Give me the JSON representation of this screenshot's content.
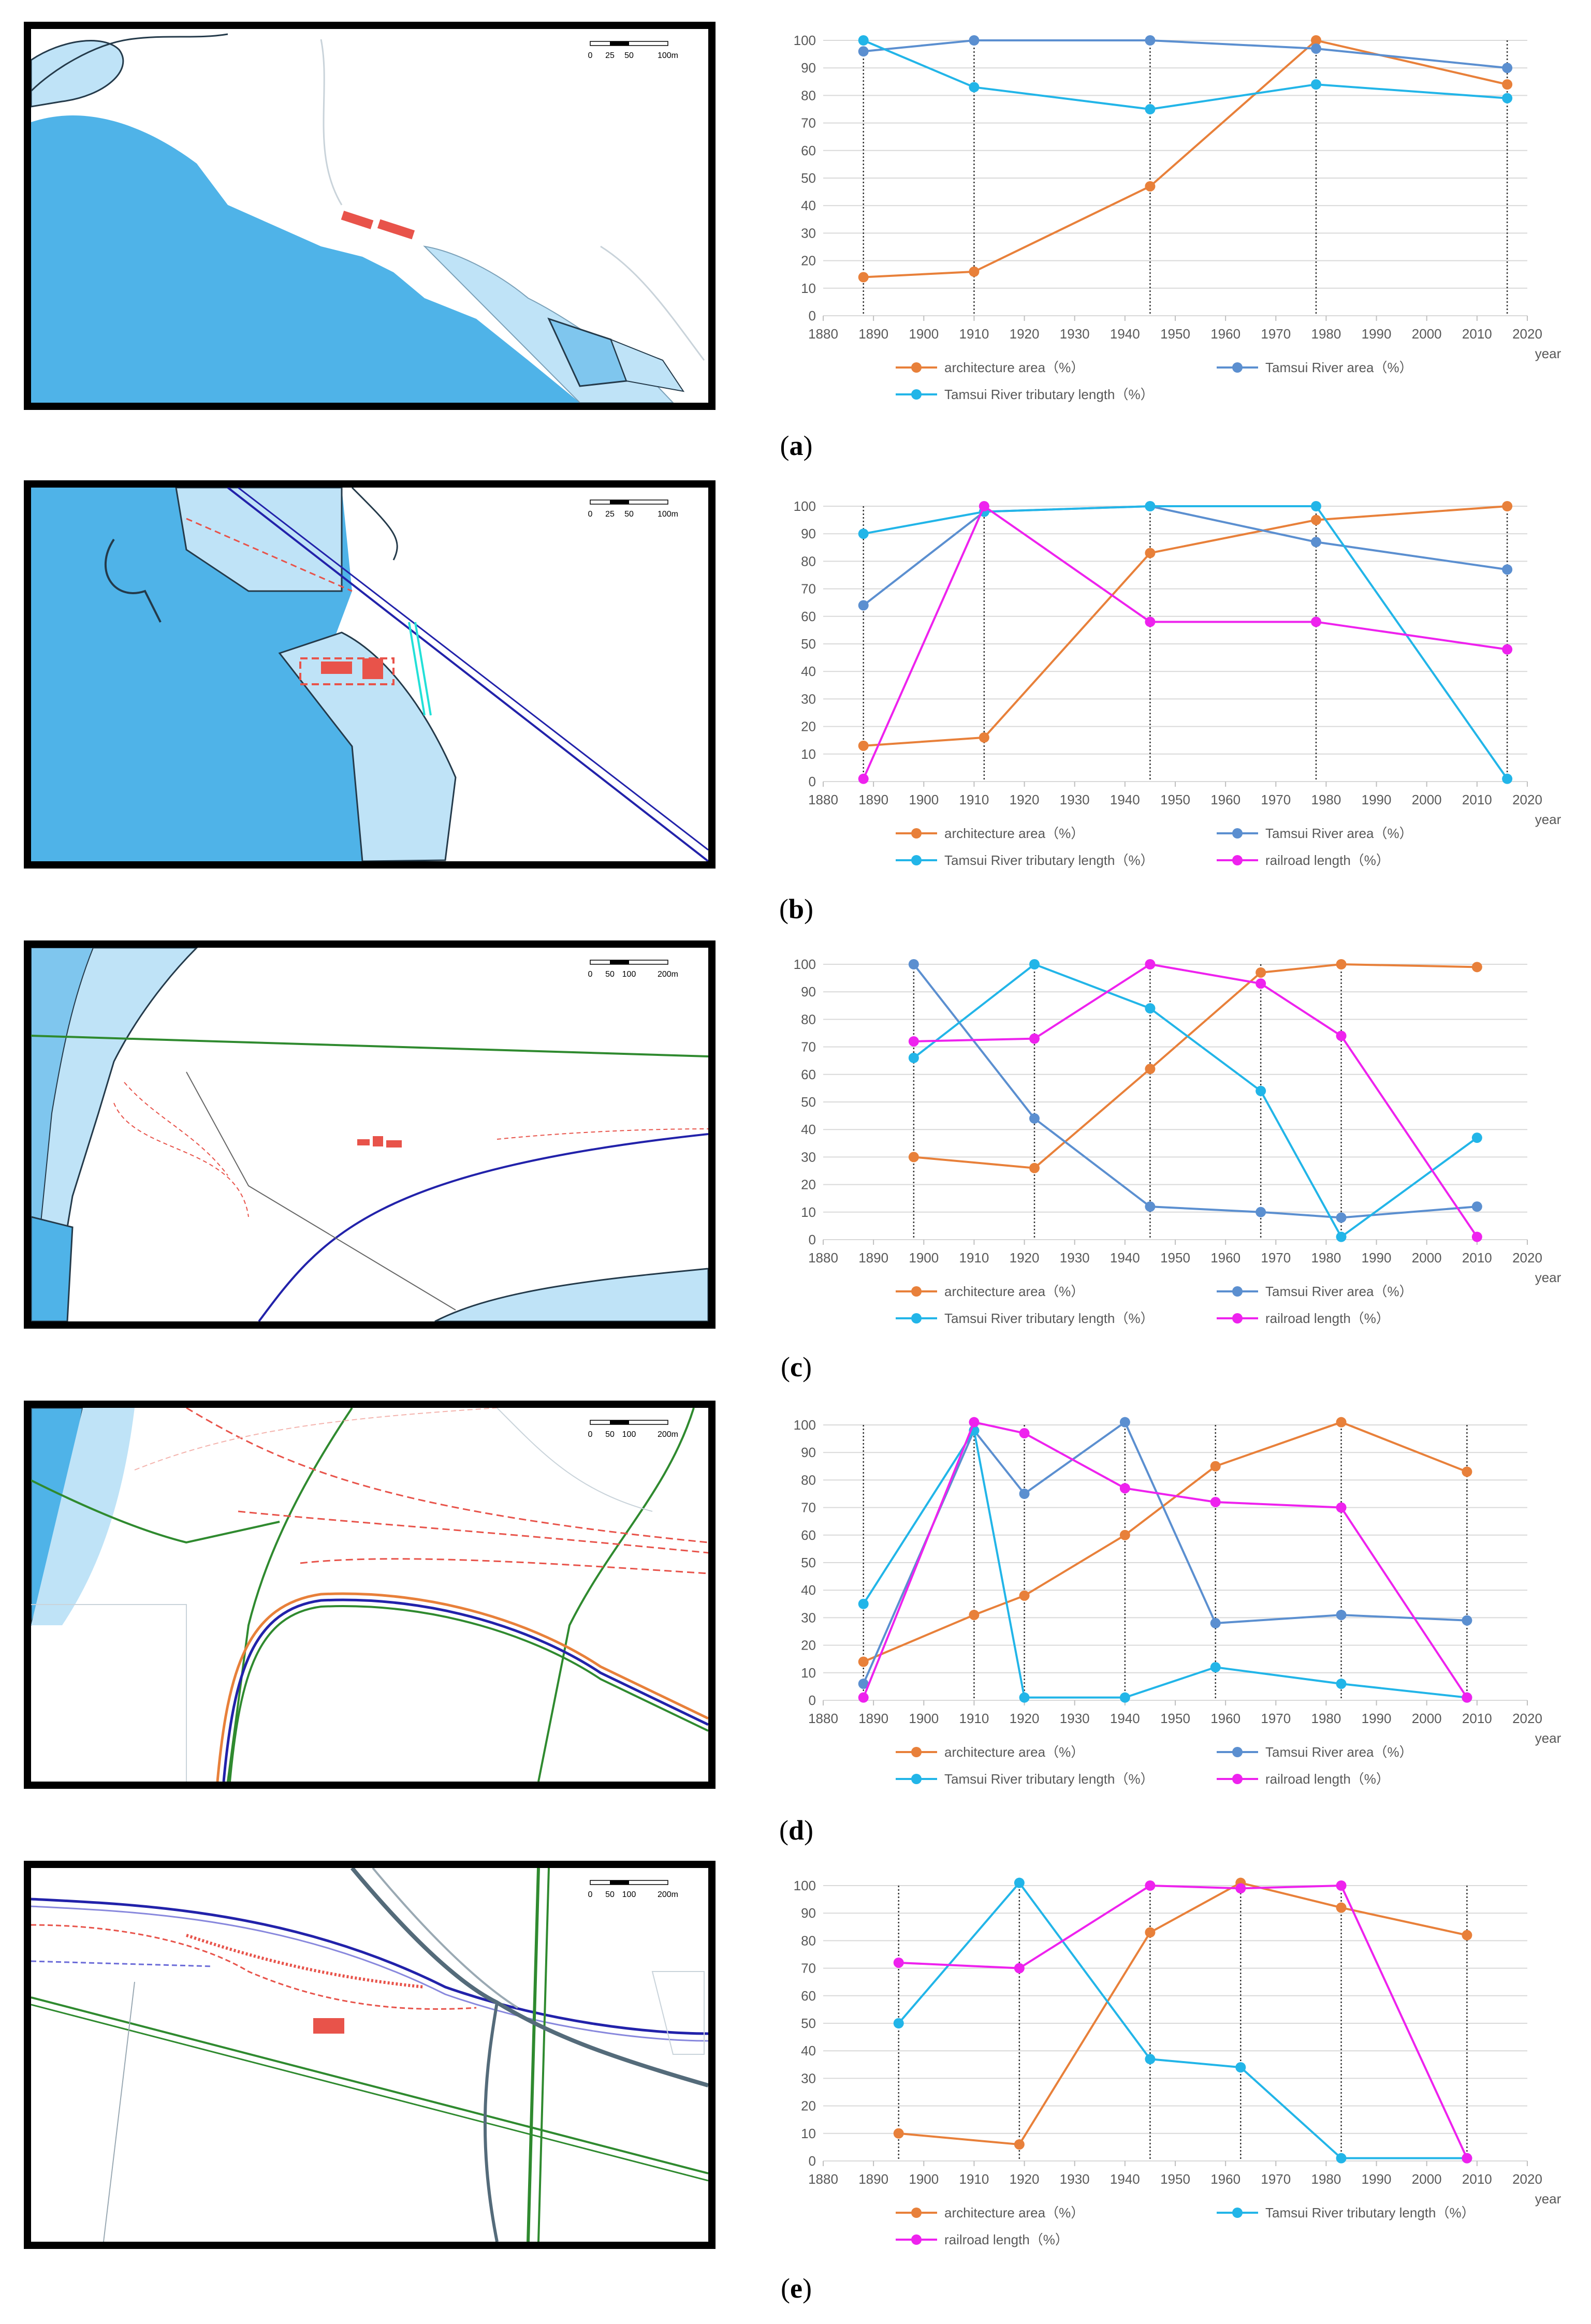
{
  "colors": {
    "architecture": "#e8803a",
    "river_area": "#5b8fd0",
    "tributary": "#22b5e8",
    "railroad": "#ee22ee",
    "grid": "#d9d9d9",
    "axis_text": "#595959",
    "water": "#4fb3e8",
    "water_light": "#bfe3f7",
    "building": "#e8534a",
    "rail_blue": "#2222aa",
    "road_green": "#2f8a2f"
  },
  "panels": [
    {
      "id": "a",
      "label_open": "(",
      "label": "a",
      "label_close": ")",
      "scale": {
        "t0": "0",
        "t1": "25",
        "t2": "50",
        "t3": "100m"
      }
    },
    {
      "id": "b",
      "label_open": "(",
      "label": "b",
      "label_close": ")",
      "scale": {
        "t0": "0",
        "t1": "25",
        "t2": "50",
        "t3": "100m"
      }
    },
    {
      "id": "c",
      "label_open": "(",
      "label": "c",
      "label_close": ")",
      "scale": {
        "t0": "0",
        "t1": "50",
        "t2": "100",
        "t3": "200m"
      }
    },
    {
      "id": "d",
      "label_open": "(",
      "label": "d",
      "label_close": ")",
      "scale": {
        "t0": "0",
        "t1": "50",
        "t2": "100",
        "t3": "200m"
      }
    },
    {
      "id": "e",
      "label_open": "(",
      "label": "e",
      "label_close": ")",
      "scale": {
        "t0": "0",
        "t1": "50",
        "t2": "100",
        "t3": "200m"
      }
    }
  ],
  "chart_data": [
    {
      "type": "line",
      "title": "",
      "xlabel": "year",
      "ylabel": "",
      "xlim": [
        1880,
        2020
      ],
      "ylim": [
        0,
        100
      ],
      "xticks": [
        "1880",
        "1890",
        "1900",
        "1910",
        "1920",
        "1930",
        "1940",
        "1950",
        "1960",
        "1970",
        "1980",
        "1990",
        "2000",
        "2010",
        "2020"
      ],
      "yticks": [
        "0",
        "10",
        "20",
        "30",
        "40",
        "50",
        "60",
        "70",
        "80",
        "90",
        "100"
      ],
      "vlines": [
        1888,
        1910,
        1945,
        1978,
        2016
      ],
      "series": [
        {
          "name": "architecture area（%）",
          "key": "architecture",
          "x": [
            1888,
            1910,
            1945,
            1978,
            2016
          ],
          "values": [
            14,
            16,
            47,
            100,
            84
          ]
        },
        {
          "name": "Tamsui River area（%）",
          "key": "river_area",
          "x": [
            1888,
            1910,
            1945,
            1978,
            2016
          ],
          "values": [
            96,
            100,
            100,
            97,
            90
          ]
        },
        {
          "name": "Tamsui River tributary length（%）",
          "key": "tributary",
          "x": [
            1888,
            1910,
            1945,
            1978,
            2016
          ],
          "values": [
            100,
            83,
            75,
            84,
            79
          ]
        }
      ],
      "legend_rows": [
        [
          0,
          1
        ],
        [
          2
        ]
      ]
    },
    {
      "type": "line",
      "title": "",
      "xlabel": "year",
      "ylabel": "",
      "xlim": [
        1880,
        2020
      ],
      "ylim": [
        0,
        100
      ],
      "xticks": [
        "1880",
        "1890",
        "1900",
        "1910",
        "1920",
        "1930",
        "1940",
        "1950",
        "1960",
        "1970",
        "1980",
        "1990",
        "2000",
        "2010",
        "2020"
      ],
      "yticks": [
        "0",
        "10",
        "20",
        "30",
        "40",
        "50",
        "60",
        "70",
        "80",
        "90",
        "100"
      ],
      "vlines": [
        1888,
        1912,
        1945,
        1978,
        2016
      ],
      "series": [
        {
          "name": "architecture area（%）",
          "key": "architecture",
          "x": [
            1888,
            1912,
            1945,
            1978,
            2016
          ],
          "values": [
            13,
            16,
            83,
            95,
            100
          ]
        },
        {
          "name": "Tamsui River area（%）",
          "key": "river_area",
          "x": [
            1888,
            1912,
            1945,
            1978,
            2016
          ],
          "values": [
            64,
            98,
            100,
            87,
            77
          ]
        },
        {
          "name": "Tamsui River tributary length（%）",
          "key": "tributary",
          "x": [
            1888,
            1912,
            1945,
            1978,
            2016
          ],
          "values": [
            90,
            98,
            100,
            100,
            1
          ]
        },
        {
          "name": "railroad length（%）",
          "key": "railroad",
          "x": [
            1888,
            1912,
            1945,
            1978,
            2016
          ],
          "values": [
            1,
            100,
            58,
            58,
            48
          ]
        }
      ],
      "legend_rows": [
        [
          0,
          1
        ],
        [
          2,
          3
        ]
      ]
    },
    {
      "type": "line",
      "title": "",
      "xlabel": "year",
      "ylabel": "",
      "xlim": [
        1880,
        2020
      ],
      "ylim": [
        0,
        100
      ],
      "xticks": [
        "1880",
        "1890",
        "1900",
        "1910",
        "1920",
        "1930",
        "1940",
        "1950",
        "1960",
        "1970",
        "1980",
        "1990",
        "2000",
        "2010",
        "2020"
      ],
      "yticks": [
        "0",
        "10",
        "20",
        "30",
        "40",
        "50",
        "60",
        "70",
        "80",
        "90",
        "100"
      ],
      "vlines": [
        1898,
        1922,
        1945,
        1967,
        1983
      ],
      "series": [
        {
          "name": "architecture area（%）",
          "key": "architecture",
          "x": [
            1898,
            1922,
            1945,
            1967,
            1983,
            2010
          ],
          "values": [
            30,
            26,
            62,
            97,
            100,
            99
          ]
        },
        {
          "name": "Tamsui River area（%）",
          "key": "river_area",
          "x": [
            1898,
            1922,
            1945,
            1967,
            1983,
            2010
          ],
          "values": [
            100,
            44,
            12,
            10,
            8,
            12
          ]
        },
        {
          "name": "Tamsui River tributary length（%）",
          "key": "tributary",
          "x": [
            1898,
            1922,
            1945,
            1967,
            1983,
            2010
          ],
          "values": [
            66,
            100,
            84,
            54,
            1,
            37
          ]
        },
        {
          "name": "railroad length（%）",
          "key": "railroad",
          "x": [
            1898,
            1922,
            1945,
            1967,
            1983,
            2010
          ],
          "values": [
            72,
            73,
            100,
            93,
            74,
            1
          ]
        }
      ],
      "legend_rows": [
        [
          0,
          1
        ],
        [
          2,
          3
        ]
      ]
    },
    {
      "type": "line",
      "title": "",
      "xlabel": "year",
      "ylabel": "",
      "xlim": [
        1880,
        2020
      ],
      "ylim": [
        0,
        100
      ],
      "xticks": [
        "1880",
        "1890",
        "1900",
        "1910",
        "1920",
        "1930",
        "1940",
        "1950",
        "1960",
        "1970",
        "1980",
        "1990",
        "2000",
        "2010",
        "2020"
      ],
      "yticks": [
        "0",
        "10",
        "20",
        "30",
        "40",
        "50",
        "60",
        "70",
        "80",
        "90",
        "100"
      ],
      "vlines": [
        1888,
        1910,
        1920,
        1940,
        1958,
        1983,
        2008
      ],
      "series": [
        {
          "name": "architecture area（%）",
          "key": "architecture",
          "x": [
            1888,
            1910,
            1920,
            1940,
            1958,
            1983,
            2008
          ],
          "values": [
            14,
            31,
            38,
            60,
            85,
            101,
            83
          ]
        },
        {
          "name": "Tamsui River area（%）",
          "key": "river_area",
          "x": [
            1888,
            1910,
            1920,
            1940,
            1958,
            1983,
            2008
          ],
          "values": [
            6,
            98,
            75,
            101,
            28,
            31,
            29
          ]
        },
        {
          "name": "Tamsui River tributary length（%）",
          "key": "tributary",
          "x": [
            1888,
            1910,
            1920,
            1940,
            1958,
            1983,
            2008
          ],
          "values": [
            35,
            98,
            1,
            1,
            12,
            6,
            1
          ]
        },
        {
          "name": "railroad length（%）",
          "key": "railroad",
          "x": [
            1888,
            1910,
            1920,
            1940,
            1958,
            1983,
            2008
          ],
          "values": [
            1,
            101,
            97,
            77,
            72,
            70,
            1
          ]
        }
      ],
      "legend_rows": [
        [
          0,
          1
        ],
        [
          2,
          3
        ]
      ]
    },
    {
      "type": "line",
      "title": "",
      "xlabel": "year",
      "ylabel": "",
      "xlim": [
        1880,
        2020
      ],
      "ylim": [
        0,
        100
      ],
      "xticks": [
        "1880",
        "1890",
        "1900",
        "1910",
        "1920",
        "1930",
        "1940",
        "1950",
        "1960",
        "1970",
        "1980",
        "1990",
        "2000",
        "2010",
        "2020"
      ],
      "yticks": [
        "0",
        "10",
        "20",
        "30",
        "40",
        "50",
        "60",
        "70",
        "80",
        "90",
        "100"
      ],
      "vlines": [
        1895,
        1919,
        1945,
        1963,
        1983,
        2008
      ],
      "series": [
        {
          "name": "architecture area（%）",
          "key": "architecture",
          "x": [
            1895,
            1919,
            1945,
            1963,
            1983,
            2008
          ],
          "values": [
            10,
            6,
            83,
            101,
            92,
            82
          ]
        },
        {
          "name": "Tamsui River tributary length（%）",
          "key": "tributary",
          "x": [
            1895,
            1919,
            1945,
            1963,
            1983,
            2008
          ],
          "values": [
            50,
            101,
            37,
            34,
            1,
            1
          ]
        },
        {
          "name": "railroad length（%）",
          "key": "railroad",
          "x": [
            1895,
            1919,
            1945,
            1963,
            1983,
            2008
          ],
          "values": [
            72,
            70,
            100,
            99,
            100,
            1
          ]
        }
      ],
      "legend_rows": [
        [
          0,
          1
        ],
        [
          2
        ]
      ]
    }
  ]
}
